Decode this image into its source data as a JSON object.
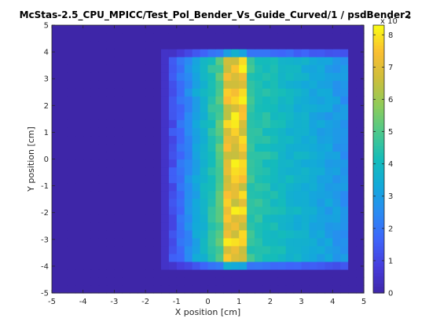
{
  "chart_data": {
    "type": "heatmap",
    "title": "McStas-2.5_CPU_MPICC/Test_Pol_Bender_Vs_Guide_Curved/1 / psdBender2",
    "xlabel": "X position [cm]",
    "ylabel": "Y position [cm]",
    "xlim": [
      -5,
      5
    ],
    "ylim": [
      -5,
      5
    ],
    "x_ticks": [
      "-5",
      "-4",
      "-3",
      "-2",
      "-1",
      "0",
      "1",
      "2",
      "3",
      "4",
      "5"
    ],
    "y_ticks": [
      "-5",
      "-4",
      "-3",
      "-2",
      "-1",
      "0",
      "1",
      "2",
      "3",
      "4",
      "5"
    ],
    "colorbar": {
      "ticks": [
        "0",
        "1",
        "2",
        "3",
        "4",
        "5",
        "6",
        "7",
        "8"
      ],
      "range": [
        0,
        8.3
      ],
      "exponent_base": "x 10",
      "exponent_power": "-6",
      "colormap": "parula"
    },
    "grid": false,
    "data_description": {
      "beam_x_range": [
        -1.2,
        4.5
      ],
      "beam_y_range": [
        -4.0,
        4.0
      ],
      "peak_band_x_range": [
        0.4,
        1.2
      ],
      "peak_value": 8.2,
      "plateau_value": 2.6,
      "background_value": 0.0
    },
    "colors": {
      "background": "#3e26a8",
      "peak": "#f9fb15"
    }
  }
}
